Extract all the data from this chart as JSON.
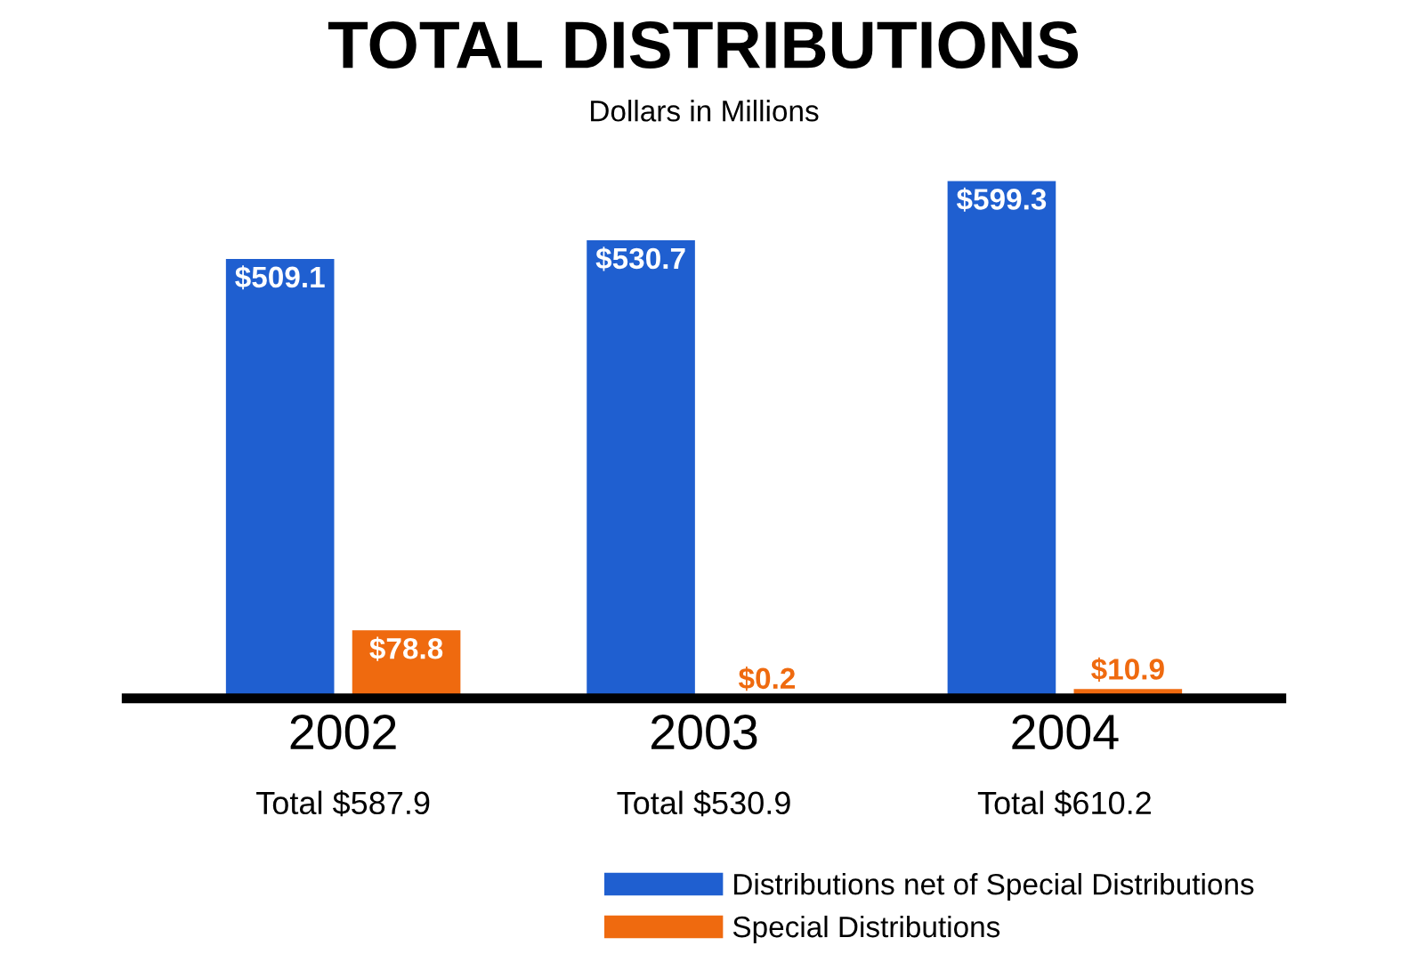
{
  "chart_data": {
    "type": "bar",
    "title": "TOTAL DISTRIBUTIONS",
    "subtitle": "Dollars in Millions",
    "categories": [
      "2002",
      "2003",
      "2004"
    ],
    "series": [
      {
        "name": "Distributions net of Special Distributions",
        "color": "#1f5fd0",
        "values": [
          509.1,
          530.7,
          599.3
        ],
        "value_labels": [
          "$509.1",
          "$530.7",
          "$599.3"
        ]
      },
      {
        "name": "Special Distributions",
        "color": "#ef6a0f",
        "values": [
          78.8,
          0.2,
          10.9
        ],
        "value_labels": [
          "$78.8",
          "$0.2",
          "$10.9"
        ]
      }
    ],
    "annotations": [
      "Total $587.9",
      "Total $530.9",
      "Total $610.2"
    ],
    "tick_labels": "x",
    "grid": false,
    "legend": "bottom right"
  }
}
